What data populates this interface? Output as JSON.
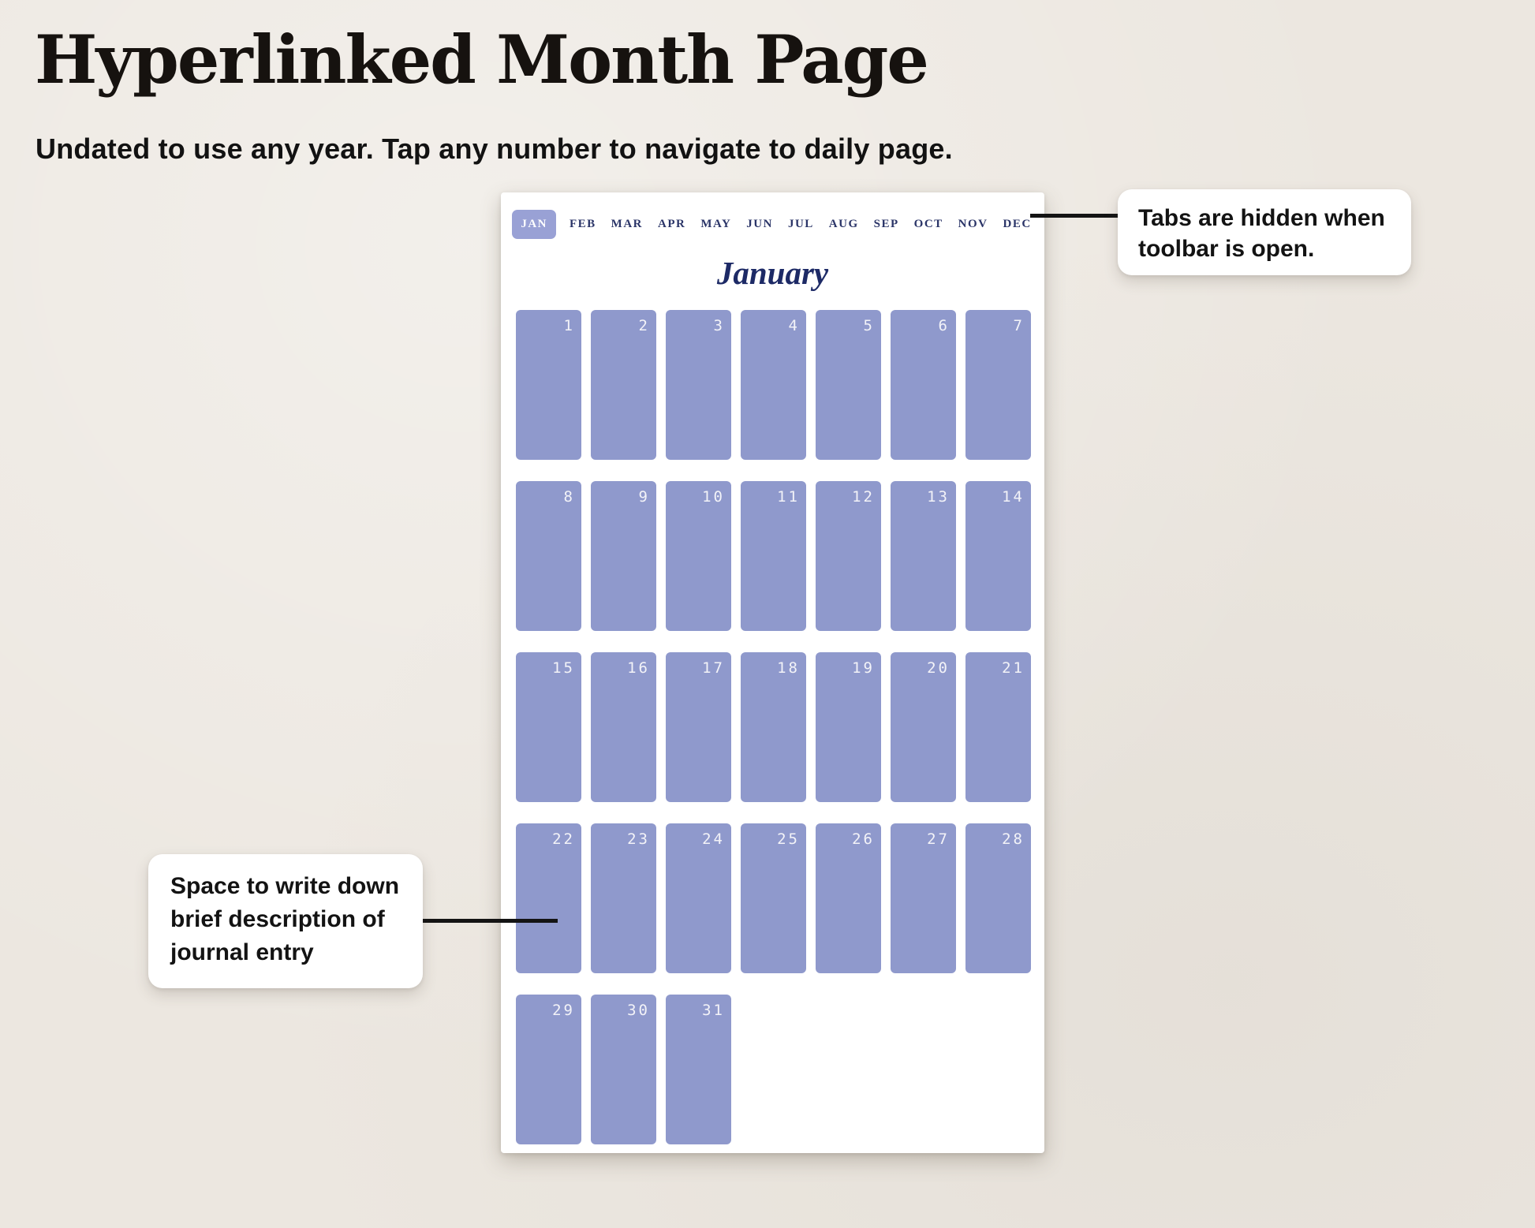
{
  "page": {
    "title": "Hyperlinked Month Page",
    "subtitle": "Undated to use any year. Tap any number to navigate to daily page."
  },
  "planner": {
    "month_title": "January",
    "tabs": [
      {
        "label": "JAN",
        "active": true
      },
      {
        "label": "FEB",
        "active": false
      },
      {
        "label": "MAR",
        "active": false
      },
      {
        "label": "APR",
        "active": false
      },
      {
        "label": "MAY",
        "active": false
      },
      {
        "label": "JUN",
        "active": false
      },
      {
        "label": "JUL",
        "active": false
      },
      {
        "label": "AUG",
        "active": false
      },
      {
        "label": "SEP",
        "active": false
      },
      {
        "label": "OCT",
        "active": false
      },
      {
        "label": "NOV",
        "active": false
      },
      {
        "label": "DEC",
        "active": false
      }
    ],
    "days": [
      1,
      2,
      3,
      4,
      5,
      6,
      7,
      8,
      9,
      10,
      11,
      12,
      13,
      14,
      15,
      16,
      17,
      18,
      19,
      20,
      21,
      22,
      23,
      24,
      25,
      26,
      27,
      28,
      29,
      30,
      31
    ]
  },
  "callouts": {
    "tabs_note": "Tabs are hidden when toolbar is open.",
    "journal_note": "Space to write down brief description of journal entry"
  },
  "colors": {
    "bg": "#ece7e0",
    "panel": "#ffffff",
    "cell": "#8f99cc",
    "tab-active-bg": "#99a1d5",
    "navy": "#2b3568",
    "navy-dark": "#1d2a66",
    "day-number": "#f3f3f8",
    "text": "#141414"
  }
}
